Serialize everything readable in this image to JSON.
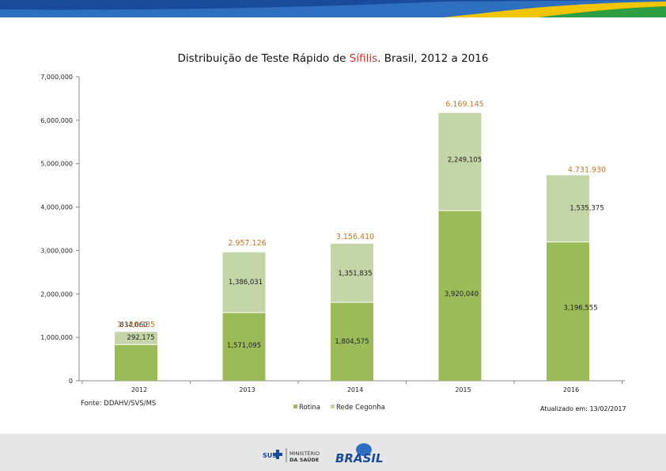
{
  "header": {
    "title_prefix": "Distribuição de Teste Rápido de ",
    "title_highlight": "Sífilis",
    "title_suffix": ". Brasil, 2012 a 2016"
  },
  "footer": {
    "source": "Fonte: DDAHV/SVS/MS",
    "updated": "Atualizado em: 13/02/2017",
    "logos": {
      "sus": "SUS",
      "ministry_line1": "MINISTÉRIO",
      "ministry_line2": "DA SAÚDE",
      "brasil": "BRASIL"
    }
  },
  "colors": {
    "rotina": "#9bbb59",
    "rede_cegonha": "#c4d5a8",
    "total_label": "#c0762a",
    "band_blue": "#1a4b9a",
    "band_yellow": "#f2c500",
    "band_green": "#2e9e44"
  },
  "chart_data": {
    "type": "bar",
    "stacked": true,
    "categories": [
      "2012",
      "2013",
      "2014",
      "2015",
      "2016"
    ],
    "series": [
      {
        "name": "Rotina",
        "values": [
          834060,
          1571095,
          1804575,
          3920040,
          3196555
        ],
        "labels": [
          "834,060",
          "1,571,095",
          "1,804,575",
          "3,920,040",
          "3,196,555"
        ]
      },
      {
        "name": "Rede Cegonha",
        "values": [
          292175,
          1386031,
          1351835,
          2249105,
          1535375
        ],
        "labels": [
          "292,175",
          "1,386,031",
          "1,351,835",
          "2,249,105",
          "1,535,375"
        ]
      }
    ],
    "totals": [
      "1.126.235",
      "2.957.126",
      "3.156.410",
      "6.169.145",
      "4.731.930"
    ],
    "ylim": [
      0,
      7000000
    ],
    "yticks": [
      0,
      1000000,
      2000000,
      3000000,
      4000000,
      5000000,
      6000000,
      7000000
    ],
    "ytick_labels": [
      "0",
      "1,000,000",
      "2,000,000",
      "3,000,000",
      "4,000,000",
      "5,000,000",
      "6,000,000",
      "7,000,000"
    ],
    "legend_position": "bottom",
    "grid": false
  }
}
